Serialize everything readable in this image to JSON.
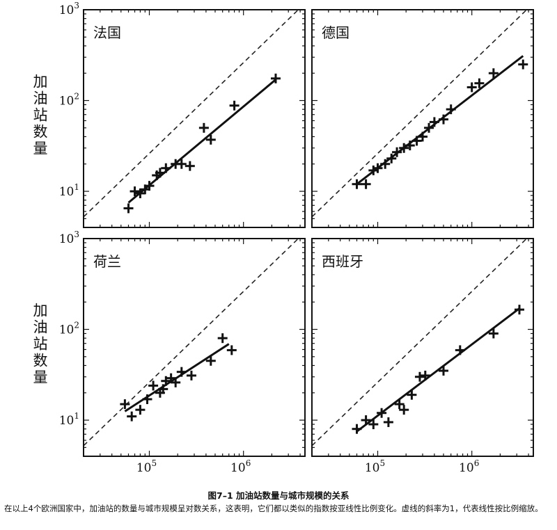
{
  "chart_data": [
    {
      "type": "scatter",
      "title": "法国",
      "ylabel": "加油站数量",
      "xscale": "log",
      "yscale": "log",
      "xlim": [
        20000,
        4500000
      ],
      "ylim": [
        4,
        1000
      ],
      "yticks": [
        10,
        100,
        1000
      ],
      "points": [
        [
          60000,
          6.5
        ],
        [
          70000,
          10
        ],
        [
          80000,
          9.5
        ],
        [
          90000,
          10.5
        ],
        [
          100000,
          11.5
        ],
        [
          120000,
          15
        ],
        [
          130000,
          16
        ],
        [
          150000,
          18
        ],
        [
          190000,
          20
        ],
        [
          220000,
          20
        ],
        [
          270000,
          19
        ],
        [
          380000,
          50
        ],
        [
          450000,
          37
        ],
        [
          800000,
          88
        ],
        [
          2200000,
          175
        ]
      ],
      "fit_line": [
        [
          60000,
          7.5
        ],
        [
          2200000,
          170
        ]
      ],
      "reference_line": "slope 1"
    },
    {
      "type": "scatter",
      "title": "德国",
      "xscale": "log",
      "yscale": "log",
      "xlim": [
        20000,
        4500000
      ],
      "ylim": [
        4,
        1000
      ],
      "points": [
        [
          60000,
          12
        ],
        [
          75000,
          12
        ],
        [
          90000,
          17
        ],
        [
          100000,
          18
        ],
        [
          120000,
          20
        ],
        [
          140000,
          23
        ],
        [
          160000,
          27
        ],
        [
          190000,
          30
        ],
        [
          220000,
          32
        ],
        [
          260000,
          36
        ],
        [
          300000,
          40
        ],
        [
          350000,
          50
        ],
        [
          400000,
          58
        ],
        [
          500000,
          62
        ],
        [
          600000,
          80
        ],
        [
          1000000,
          140
        ],
        [
          1200000,
          155
        ],
        [
          1700000,
          200
        ],
        [
          3500000,
          250
        ]
      ],
      "fit_line": [
        [
          60000,
          12
        ],
        [
          3500000,
          310
        ]
      ],
      "reference_line": "slope 1"
    },
    {
      "type": "scatter",
      "title": "荷兰",
      "ylabel": "加油站数量",
      "xscale": "log",
      "yscale": "log",
      "xlim": [
        20000,
        4500000
      ],
      "ylim": [
        4,
        1000
      ],
      "yticks": [
        10,
        100,
        1000
      ],
      "xticks": [
        100000,
        1000000
      ],
      "points": [
        [
          55000,
          15
        ],
        [
          65000,
          11
        ],
        [
          80000,
          13
        ],
        [
          95000,
          17
        ],
        [
          110000,
          24
        ],
        [
          130000,
          20
        ],
        [
          140000,
          22
        ],
        [
          150000,
          27
        ],
        [
          170000,
          29
        ],
        [
          190000,
          26
        ],
        [
          220000,
          34
        ],
        [
          280000,
          31
        ],
        [
          450000,
          45
        ],
        [
          600000,
          80
        ],
        [
          750000,
          59
        ]
      ],
      "fit_line": [
        [
          55000,
          12.5
        ],
        [
          700000,
          69
        ]
      ],
      "reference_line": "slope 1"
    },
    {
      "type": "scatter",
      "title": "西班牙",
      "xscale": "log",
      "yscale": "log",
      "xlim": [
        20000,
        4500000
      ],
      "ylim": [
        4,
        1000
      ],
      "xticks": [
        100000,
        1000000
      ],
      "points": [
        [
          60000,
          8
        ],
        [
          75000,
          10
        ],
        [
          90000,
          9
        ],
        [
          110000,
          12
        ],
        [
          130000,
          9.5
        ],
        [
          170000,
          15
        ],
        [
          190000,
          13
        ],
        [
          230000,
          19
        ],
        [
          280000,
          30
        ],
        [
          320000,
          31
        ],
        [
          500000,
          35
        ],
        [
          750000,
          59
        ],
        [
          1700000,
          90
        ],
        [
          3200000,
          165
        ]
      ],
      "fit_line": [
        [
          60000,
          7.5
        ],
        [
          3200000,
          170
        ]
      ],
      "reference_line": "slope 1"
    }
  ],
  "tick_labels": {
    "y10": "10",
    "y10_exp": "1",
    "y100": "10",
    "y100_exp": "2",
    "y1000": "10",
    "y1000_exp": "3",
    "x1e5": "10",
    "x1e5_exp": "5",
    "x1e6": "10",
    "x1e6_exp": "6"
  },
  "caption": {
    "title": "图7–1 加油站数量与城市规模的关系",
    "body": "在以上4个欧洲国家中，加油站的数量与城市规模呈对数关系，这表明，它们都以类似的指数按亚线性比例变化。虚线的斜率为1，代表线性按比例缩放。"
  }
}
